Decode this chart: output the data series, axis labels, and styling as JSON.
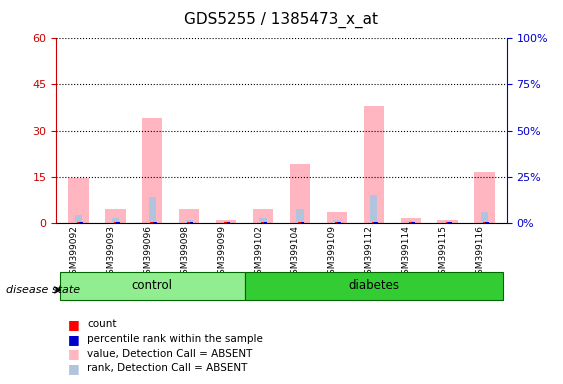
{
  "title": "GDS5255 / 1385473_x_at",
  "samples": [
    "GSM399092",
    "GSM399093",
    "GSM399096",
    "GSM399098",
    "GSM399099",
    "GSM399102",
    "GSM399104",
    "GSM399109",
    "GSM399112",
    "GSM399114",
    "GSM399115",
    "GSM399116"
  ],
  "groups": [
    "control",
    "control",
    "control",
    "control",
    "control",
    "diabetes",
    "diabetes",
    "diabetes",
    "diabetes",
    "diabetes",
    "diabetes",
    "diabetes"
  ],
  "value_absent": [
    14.5,
    4.5,
    34.0,
    4.5,
    0.8,
    4.5,
    19.0,
    3.5,
    38.0,
    1.5,
    0.8,
    16.5
  ],
  "rank_absent": [
    2.5,
    1.5,
    8.5,
    1.0,
    0.5,
    1.5,
    4.5,
    1.0,
    9.0,
    0.5,
    0.5,
    3.5
  ],
  "count_present": [
    0,
    0,
    0,
    0,
    0,
    0,
    0,
    0,
    0,
    0,
    0,
    0
  ],
  "percentile_present": [
    0,
    0,
    0,
    0,
    0,
    0,
    0,
    0,
    0,
    0,
    0,
    0
  ],
  "ylim_left": [
    0,
    60
  ],
  "ylim_right": [
    0,
    100
  ],
  "yticks_left": [
    0,
    15,
    30,
    45,
    60
  ],
  "yticks_right": [
    0,
    25,
    50,
    75,
    100
  ],
  "ytick_labels_left": [
    "0",
    "15",
    "30",
    "45",
    "60"
  ],
  "ytick_labels_right": [
    "0%",
    "25%",
    "50%",
    "75%",
    "100%"
  ],
  "group_colors": {
    "control": "#90EE90",
    "diabetes": "#00CC00"
  },
  "bar_color_absent_value": "#FFB6C1",
  "bar_color_absent_rank": "#B0C4DE",
  "bar_color_present_count": "#FF0000",
  "bar_color_present_pct": "#0000CC",
  "control_label": "control",
  "diabetes_label": "diabetes",
  "disease_state_label": "disease state",
  "legend_items": [
    {
      "color": "#FF0000",
      "label": "count"
    },
    {
      "color": "#0000CC",
      "label": "percentile rank within the sample"
    },
    {
      "color": "#FFB6C1",
      "label": "value, Detection Call = ABSENT"
    },
    {
      "color": "#B0C4DE",
      "label": "rank, Detection Call = ABSENT"
    }
  ],
  "bar_width": 0.55,
  "left_axis_color": "#CC0000",
  "right_axis_color": "#0000CC"
}
